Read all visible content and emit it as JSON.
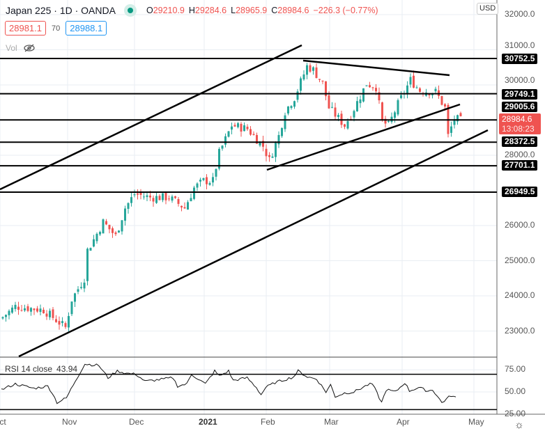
{
  "header": {
    "symbol_title": "Japan 225 · 1D · OANDA",
    "open": "29210.9",
    "high": "29284.6",
    "low": "28965.9",
    "close": "28984.6",
    "change": "−226.3 (−0.77%)",
    "market_status_color": "#089981"
  },
  "trade": {
    "sell_price": "28981.1",
    "spread": "70",
    "buy_price": "28988.1"
  },
  "volume": {
    "label": "Vol",
    "icon": "eye-off-icon"
  },
  "currency": "USD",
  "price_axis": {
    "ticks": [
      "32000.0",
      "31000.0",
      "30000.0",
      "28000.0",
      "26000.0",
      "25000.0",
      "24000.0",
      "23000.0"
    ],
    "levels": [
      "30752.5",
      "29749.1",
      "29005.6",
      "28372.5",
      "27701.1",
      "26949.5"
    ],
    "current_price": "28984.6",
    "countdown": "13:08:23"
  },
  "time_axis": {
    "labels": [
      "Oct",
      "Nov",
      "Dec",
      "2021",
      "Feb",
      "Mar",
      "Apr",
      "May"
    ]
  },
  "rsi": {
    "label": "RSI 14 close",
    "value": "43.94",
    "ticks": [
      "75.00",
      "50.00",
      "25.00"
    ],
    "upper_band": 70,
    "lower_band": 30
  },
  "colors": {
    "up": "#26a69a",
    "down": "#ef5350",
    "grid": "#e9eef3",
    "line": "#000000"
  },
  "chart_data": {
    "type": "candlestick",
    "title": "Japan 225 · 1D · OANDA",
    "ylim": [
      22300,
      32300
    ],
    "horizontal_levels": [
      30752.5,
      29749.1,
      29005.6,
      28372.5,
      27701.1,
      26949.5
    ],
    "close_keypoints": [
      [
        0,
        23400
      ],
      [
        4,
        23700
      ],
      [
        13,
        23600
      ],
      [
        20,
        23100
      ],
      [
        22,
        23900
      ],
      [
        26,
        24500
      ],
      [
        27,
        25300
      ],
      [
        29,
        25600
      ],
      [
        32,
        26100
      ],
      [
        36,
        25700
      ],
      [
        39,
        26500
      ],
      [
        42,
        26900
      ],
      [
        47,
        26800
      ],
      [
        53,
        26800
      ],
      [
        58,
        26500
      ],
      [
        61,
        27070
      ],
      [
        64,
        27270
      ],
      [
        67,
        27270
      ],
      [
        69,
        28060
      ],
      [
        73,
        28850
      ],
      [
        78,
        28750
      ],
      [
        83,
        28260
      ],
      [
        85,
        27860
      ],
      [
        88,
        28550
      ],
      [
        90,
        29250
      ],
      [
        93,
        29640
      ],
      [
        97,
        30530
      ],
      [
        99,
        30430
      ],
      [
        102,
        30040
      ],
      [
        104,
        29350
      ],
      [
        109,
        28850
      ],
      [
        111,
        29150
      ],
      [
        116,
        30040
      ],
      [
        119,
        29940
      ],
      [
        121,
        28950
      ],
      [
        123,
        28850
      ],
      [
        126,
        29450
      ],
      [
        130,
        30140
      ],
      [
        133,
        29840
      ],
      [
        138,
        29800
      ],
      [
        141,
        29350
      ],
      [
        142,
        28550
      ],
      [
        144,
        29050
      ],
      [
        146,
        28985
      ]
    ],
    "rsi_keypoints": [
      [
        0,
        52.6
      ],
      [
        3,
        59
      ],
      [
        7,
        54
      ],
      [
        10,
        56.6
      ],
      [
        11,
        48.7
      ],
      [
        12,
        38
      ],
      [
        14,
        43
      ],
      [
        16,
        63
      ],
      [
        18,
        81.6
      ],
      [
        21,
        80
      ],
      [
        23,
        66
      ],
      [
        25,
        73.7
      ],
      [
        27,
        71
      ],
      [
        29,
        70
      ],
      [
        31,
        62
      ],
      [
        35,
        64.5
      ],
      [
        37,
        66
      ],
      [
        38,
        56.6
      ],
      [
        40,
        59
      ],
      [
        41,
        70
      ],
      [
        44,
        59
      ],
      [
        46,
        73.7
      ],
      [
        47,
        68
      ],
      [
        49,
        73.7
      ],
      [
        50,
        63
      ],
      [
        53,
        66
      ],
      [
        55,
        55
      ],
      [
        56,
        47
      ],
      [
        57,
        55
      ],
      [
        59,
        60.5
      ],
      [
        63,
        67
      ],
      [
        64,
        73.7
      ],
      [
        66,
        67
      ],
      [
        68,
        64.5
      ],
      [
        70,
        50
      ],
      [
        71,
        58
      ],
      [
        72,
        44.7
      ],
      [
        74,
        48.7
      ],
      [
        76,
        50
      ],
      [
        79,
        58
      ],
      [
        80,
        59
      ],
      [
        81,
        48.7
      ],
      [
        82,
        38
      ],
      [
        83,
        52.6
      ],
      [
        85,
        50
      ],
      [
        87,
        60.5
      ],
      [
        88,
        51.3
      ],
      [
        90,
        55
      ],
      [
        92,
        51
      ],
      [
        93,
        52.6
      ],
      [
        95,
        38
      ],
      [
        97,
        46
      ],
      [
        98,
        43.4
      ]
    ]
  }
}
